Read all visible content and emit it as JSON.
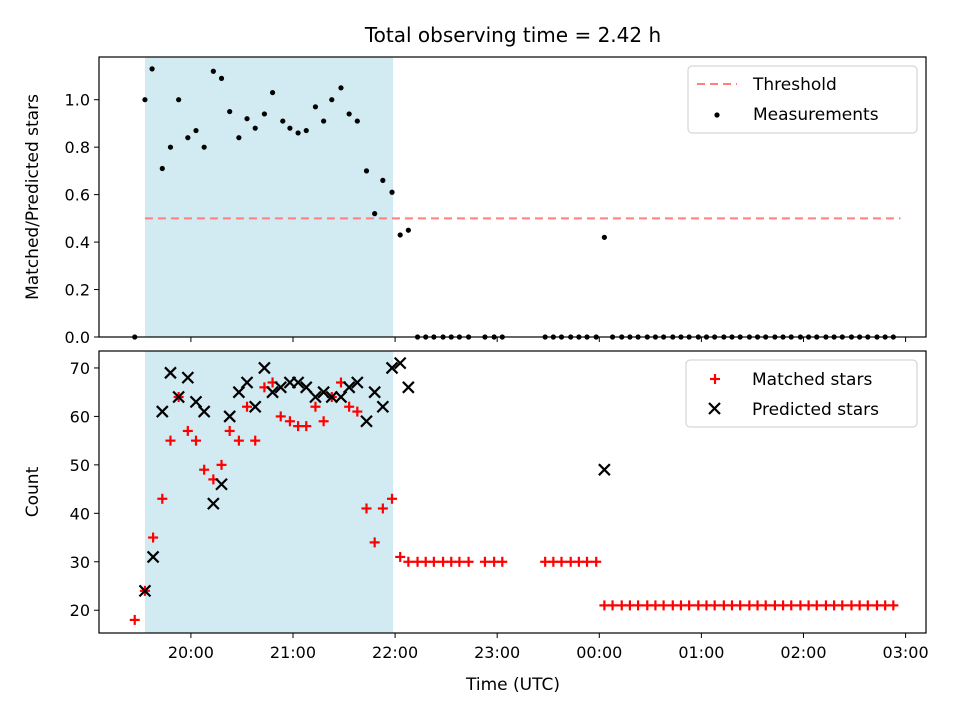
{
  "chart_data": {
    "title": "Total observing time = 2.42 h",
    "xlabel": "Time (UTC)",
    "x_range_hours": [
      19.1,
      27.2
    ],
    "x_ticks": [
      {
        "label": "20:00",
        "value": 20
      },
      {
        "label": "21:00",
        "value": 21
      },
      {
        "label": "22:00",
        "value": 22
      },
      {
        "label": "23:00",
        "value": 23
      },
      {
        "label": "00:00",
        "value": 24
      },
      {
        "label": "01:00",
        "value": 25
      },
      {
        "label": "02:00",
        "value": 26
      },
      {
        "label": "03:00",
        "value": 27
      }
    ],
    "shaded_interval_hours": [
      19.55,
      21.98
    ],
    "shade_color": "#add8e6",
    "panels": [
      {
        "type": "scatter",
        "ylabel": "Matched/Predicted stars",
        "ylim": [
          0,
          1.18
        ],
        "yticks": [
          0.0,
          0.2,
          0.4,
          0.6,
          0.8,
          1.0
        ],
        "ytick_labels": [
          "0.0",
          "0.2",
          "0.4",
          "0.6",
          "0.8",
          "1.0"
        ],
        "legend": [
          "Threshold",
          "Measurements"
        ],
        "legend_position": "upper right",
        "threshold": {
          "name": "Threshold",
          "value": 0.5,
          "x_range": [
            19.55,
            26.95
          ],
          "color": "#ff7f7f",
          "style": "dashed"
        },
        "series": [
          {
            "name": "Measurements",
            "marker": "dot",
            "color": "#000000",
            "points": [
              [
                19.45,
                0.0
              ],
              [
                19.55,
                1.0
              ],
              [
                19.62,
                1.13
              ],
              [
                19.72,
                0.71
              ],
              [
                19.8,
                0.8
              ],
              [
                19.88,
                1.0
              ],
              [
                19.97,
                0.84
              ],
              [
                20.05,
                0.87
              ],
              [
                20.13,
                0.8
              ],
              [
                20.22,
                1.12
              ],
              [
                20.3,
                1.09
              ],
              [
                20.38,
                0.95
              ],
              [
                20.47,
                0.84
              ],
              [
                20.55,
                0.92
              ],
              [
                20.63,
                0.88
              ],
              [
                20.72,
                0.94
              ],
              [
                20.8,
                1.03
              ],
              [
                20.9,
                0.91
              ],
              [
                20.97,
                0.88
              ],
              [
                21.05,
                0.86
              ],
              [
                21.13,
                0.87
              ],
              [
                21.22,
                0.97
              ],
              [
                21.3,
                0.91
              ],
              [
                21.38,
                1.0
              ],
              [
                21.47,
                1.05
              ],
              [
                21.55,
                0.94
              ],
              [
                21.63,
                0.91
              ],
              [
                21.72,
                0.7
              ],
              [
                21.8,
                0.52
              ],
              [
                21.88,
                0.66
              ],
              [
                21.97,
                0.61
              ],
              [
                22.05,
                0.43
              ],
              [
                22.13,
                0.45
              ],
              [
                22.22,
                0.0
              ],
              [
                22.3,
                0.0
              ],
              [
                22.38,
                0.0
              ],
              [
                22.47,
                0.0
              ],
              [
                22.55,
                0.0
              ],
              [
                22.63,
                0.0
              ],
              [
                22.72,
                0.0
              ],
              [
                22.88,
                0.0
              ],
              [
                22.97,
                0.0
              ],
              [
                23.05,
                0.0
              ],
              [
                23.47,
                0.0
              ],
              [
                23.55,
                0.0
              ],
              [
                23.63,
                0.0
              ],
              [
                23.72,
                0.0
              ],
              [
                23.8,
                0.0
              ],
              [
                23.88,
                0.0
              ],
              [
                23.97,
                0.0
              ],
              [
                24.05,
                0.42
              ],
              [
                24.13,
                0.0
              ],
              [
                24.22,
                0.0
              ],
              [
                24.3,
                0.0
              ],
              [
                24.38,
                0.0
              ],
              [
                24.47,
                0.0
              ],
              [
                24.55,
                0.0
              ],
              [
                24.63,
                0.0
              ],
              [
                24.72,
                0.0
              ],
              [
                24.8,
                0.0
              ],
              [
                24.88,
                0.0
              ],
              [
                24.97,
                0.0
              ],
              [
                25.05,
                0.0
              ],
              [
                25.13,
                0.0
              ],
              [
                25.22,
                0.0
              ],
              [
                25.3,
                0.0
              ],
              [
                25.38,
                0.0
              ],
              [
                25.47,
                0.0
              ],
              [
                25.55,
                0.0
              ],
              [
                25.63,
                0.0
              ],
              [
                25.72,
                0.0
              ],
              [
                25.8,
                0.0
              ],
              [
                25.88,
                0.0
              ],
              [
                25.97,
                0.0
              ],
              [
                26.05,
                0.0
              ],
              [
                26.13,
                0.0
              ],
              [
                26.22,
                0.0
              ],
              [
                26.3,
                0.0
              ],
              [
                26.38,
                0.0
              ],
              [
                26.47,
                0.0
              ],
              [
                26.55,
                0.0
              ],
              [
                26.63,
                0.0
              ],
              [
                26.72,
                0.0
              ],
              [
                26.8,
                0.0
              ],
              [
                26.88,
                0.0
              ]
            ]
          }
        ]
      },
      {
        "type": "scatter",
        "ylabel": "Count",
        "ylim": [
          15.3,
          73.5
        ],
        "yticks": [
          20,
          30,
          40,
          50,
          60,
          70
        ],
        "ytick_labels": [
          "20",
          "30",
          "40",
          "50",
          "60",
          "70"
        ],
        "legend": [
          "Matched stars",
          "Predicted stars"
        ],
        "legend_position": "upper right",
        "series": [
          {
            "name": "Matched stars",
            "marker": "plus",
            "color": "#ff0000",
            "points": [
              [
                19.45,
                18
              ],
              [
                19.55,
                24
              ],
              [
                19.63,
                35
              ],
              [
                19.72,
                43
              ],
              [
                19.8,
                55
              ],
              [
                19.88,
                64
              ],
              [
                19.97,
                57
              ],
              [
                20.05,
                55
              ],
              [
                20.13,
                49
              ],
              [
                20.22,
                47
              ],
              [
                20.3,
                50
              ],
              [
                20.38,
                57
              ],
              [
                20.47,
                55
              ],
              [
                20.55,
                62
              ],
              [
                20.63,
                55
              ],
              [
                20.72,
                66
              ],
              [
                20.8,
                67
              ],
              [
                20.88,
                60
              ],
              [
                20.97,
                59
              ],
              [
                21.05,
                58
              ],
              [
                21.13,
                58
              ],
              [
                21.22,
                62
              ],
              [
                21.3,
                59
              ],
              [
                21.38,
                64
              ],
              [
                21.47,
                67
              ],
              [
                21.55,
                62
              ],
              [
                21.63,
                61
              ],
              [
                21.72,
                41
              ],
              [
                21.8,
                34
              ],
              [
                21.88,
                41
              ],
              [
                21.97,
                43
              ],
              [
                22.05,
                31
              ],
              [
                22.13,
                30
              ],
              [
                22.22,
                30
              ],
              [
                22.3,
                30
              ],
              [
                22.38,
                30
              ],
              [
                22.47,
                30
              ],
              [
                22.55,
                30
              ],
              [
                22.63,
                30
              ],
              [
                22.72,
                30
              ],
              [
                22.88,
                30
              ],
              [
                22.97,
                30
              ],
              [
                23.05,
                30
              ],
              [
                23.47,
                30
              ],
              [
                23.55,
                30
              ],
              [
                23.63,
                30
              ],
              [
                23.72,
                30
              ],
              [
                23.8,
                30
              ],
              [
                23.88,
                30
              ],
              [
                23.97,
                30
              ],
              [
                24.05,
                21
              ],
              [
                24.13,
                21
              ],
              [
                24.22,
                21
              ],
              [
                24.3,
                21
              ],
              [
                24.38,
                21
              ],
              [
                24.47,
                21
              ],
              [
                24.55,
                21
              ],
              [
                24.63,
                21
              ],
              [
                24.72,
                21
              ],
              [
                24.8,
                21
              ],
              [
                24.88,
                21
              ],
              [
                24.97,
                21
              ],
              [
                25.05,
                21
              ],
              [
                25.13,
                21
              ],
              [
                25.22,
                21
              ],
              [
                25.3,
                21
              ],
              [
                25.38,
                21
              ],
              [
                25.47,
                21
              ],
              [
                25.55,
                21
              ],
              [
                25.63,
                21
              ],
              [
                25.72,
                21
              ],
              [
                25.8,
                21
              ],
              [
                25.88,
                21
              ],
              [
                25.97,
                21
              ],
              [
                26.05,
                21
              ],
              [
                26.13,
                21
              ],
              [
                26.22,
                21
              ],
              [
                26.3,
                21
              ],
              [
                26.38,
                21
              ],
              [
                26.47,
                21
              ],
              [
                26.55,
                21
              ],
              [
                26.63,
                21
              ],
              [
                26.72,
                21
              ],
              [
                26.8,
                21
              ],
              [
                26.88,
                21
              ]
            ]
          },
          {
            "name": "Predicted stars",
            "marker": "x",
            "color": "#000000",
            "points": [
              [
                19.55,
                24
              ],
              [
                19.63,
                31
              ],
              [
                19.72,
                61
              ],
              [
                19.8,
                69
              ],
              [
                19.88,
                64
              ],
              [
                19.97,
                68
              ],
              [
                20.05,
                63
              ],
              [
                20.13,
                61
              ],
              [
                20.22,
                42
              ],
              [
                20.3,
                46
              ],
              [
                20.38,
                60
              ],
              [
                20.47,
                65
              ],
              [
                20.55,
                67
              ],
              [
                20.63,
                62
              ],
              [
                20.72,
                70
              ],
              [
                20.8,
                65
              ],
              [
                20.88,
                66
              ],
              [
                20.97,
                67
              ],
              [
                21.05,
                67
              ],
              [
                21.13,
                66
              ],
              [
                21.22,
                64
              ],
              [
                21.3,
                65
              ],
              [
                21.38,
                64
              ],
              [
                21.47,
                64
              ],
              [
                21.55,
                66
              ],
              [
                21.63,
                67
              ],
              [
                21.72,
                59
              ],
              [
                21.8,
                65
              ],
              [
                21.88,
                62
              ],
              [
                21.97,
                70
              ],
              [
                22.05,
                71
              ],
              [
                22.13,
                66
              ],
              [
                24.05,
                49
              ]
            ]
          }
        ]
      }
    ]
  }
}
